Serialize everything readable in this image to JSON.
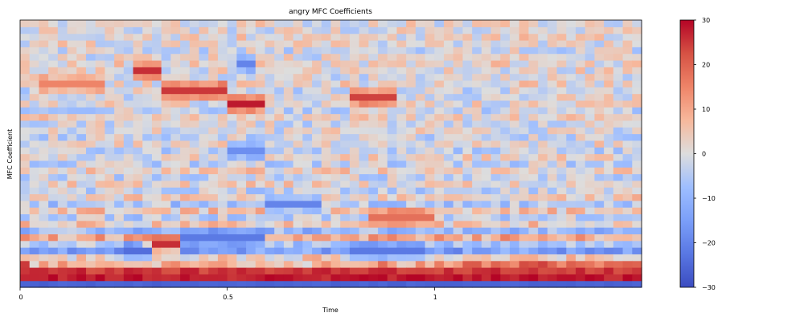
{
  "chart_data": {
    "type": "heatmap",
    "title": "angry MFC Coefficients",
    "xlabel": "Time",
    "ylabel": "MFC Coefficient",
    "xlim": [
      0,
      1.5
    ],
    "x_ticks": [
      0,
      0.5,
      1
    ],
    "x_tick_labels": [
      "0",
      "0.5",
      "1"
    ],
    "n_coefficients": 40,
    "n_frames": 66,
    "colorbar": {
      "vmin": -30,
      "vmax": 30,
      "ticks": [
        30,
        20,
        10,
        0,
        -10,
        -20,
        -30
      ],
      "tick_labels": [
        "30",
        "20",
        "10",
        "0",
        "−10",
        "−20",
        "−30"
      ],
      "colormap": "coolwarm",
      "placement": "right"
    },
    "coefficient_profile": [
      -26,
      28,
      25,
      18,
      4,
      -14,
      -6,
      9,
      -9,
      4,
      -4,
      5,
      -6,
      3,
      -3,
      2,
      -2,
      3,
      -3,
      1,
      -3,
      1,
      -2,
      0,
      -1,
      2,
      -2,
      1,
      0,
      -1,
      2,
      0,
      1,
      2,
      0,
      -1,
      1,
      2,
      0,
      1
    ],
    "hotspots": [
      {
        "coef": 30,
        "t0": 0.05,
        "t1": 0.2,
        "value": 15
      },
      {
        "coef": 32,
        "t0": 0.27,
        "t1": 0.33,
        "value": 26
      },
      {
        "coef": 29,
        "t0": 0.35,
        "t1": 0.5,
        "value": 25
      },
      {
        "coef": 27,
        "t0": 0.5,
        "t1": 0.6,
        "value": 28
      },
      {
        "coef": 28,
        "t0": 0.8,
        "t1": 0.9,
        "value": 24
      },
      {
        "coef": 33,
        "t0": 0.52,
        "t1": 0.56,
        "value": -20
      },
      {
        "coef": 12,
        "t0": 0.6,
        "t1": 0.72,
        "value": -20
      },
      {
        "coef": 10,
        "t0": 0.85,
        "t1": 1.0,
        "value": 18
      },
      {
        "coef": 6,
        "t0": 0.3,
        "t1": 0.38,
        "value": 26
      },
      {
        "coef": 5,
        "t0": 0.25,
        "t1": 0.32,
        "value": -24
      },
      {
        "coef": 7,
        "t0": 0.38,
        "t1": 0.6,
        "value": -22
      },
      {
        "coef": 5,
        "t0": 0.8,
        "t1": 0.98,
        "value": -22
      },
      {
        "coef": 20,
        "t0": 0.5,
        "t1": 0.6,
        "value": -18
      }
    ]
  }
}
